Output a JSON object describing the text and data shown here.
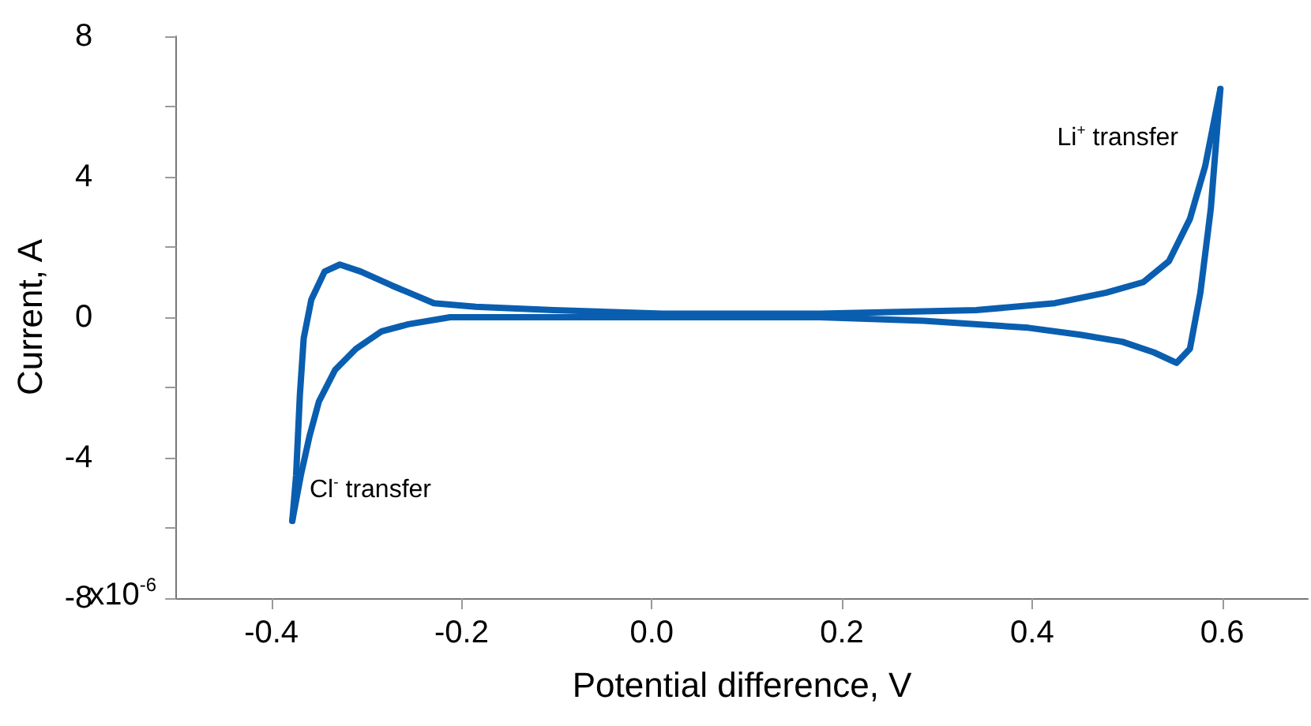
{
  "chart_data": {
    "type": "line",
    "xlabel": "Potential difference, V",
    "ylabel": "Current, A",
    "xlim": [
      -0.5,
      0.69
    ],
    "ylim": [
      -8,
      8
    ],
    "xticks": [
      -0.4,
      -0.2,
      {
        "value": 0,
        "label": "0.0"
      },
      0.2,
      0.4,
      0.6
    ],
    "yticks": [
      -8,
      {
        "value": -6,
        "label": null
      },
      -4,
      {
        "value": -2,
        "label": null
      },
      0,
      {
        "value": 2,
        "label": null
      },
      4,
      {
        "value": 6,
        "label": null
      },
      8
    ],
    "grid": false,
    "marker": "none",
    "line_style": "solid",
    "annotations": [
      "Li$^{+}$ transfer",
      "Cl$^{-}$ transfer",
      "x10$^{-6}$"
    ],
    "series": [
      {
        "color": "#0a5eb0",
        "x": [
          0.598,
          0.588,
          0.577,
          0.566,
          0.552,
          0.528,
          0.495,
          0.451,
          0.396,
          0.286,
          0.177,
          0.012,
          -0.13,
          -0.212,
          -0.256,
          -0.284,
          -0.311,
          -0.333,
          -0.35,
          -0.36,
          -0.369,
          -0.378
        ],
        "values": [
          6.5,
          3.1,
          0.7,
          -0.9,
          -1.3,
          -1.0,
          -0.7,
          -0.5,
          -0.3,
          -0.1,
          0.0,
          0.0,
          0.0,
          0.0,
          -0.2,
          -0.4,
          -0.9,
          -1.5,
          -2.4,
          -3.4,
          -4.5,
          -5.8
        ]
      },
      {
        "color": "#0a5eb0",
        "x": [
          -0.378,
          -0.374,
          -0.37,
          -0.366,
          -0.358,
          -0.344,
          -0.328,
          -0.306,
          -0.273,
          -0.229,
          -0.185,
          -0.103,
          0.012,
          0.177,
          0.341,
          0.424,
          0.478,
          0.517,
          0.544,
          0.566,
          0.582,
          0.598
        ],
        "values": [
          -5.8,
          -4.5,
          -2.2,
          -0.6,
          0.5,
          1.3,
          1.5,
          1.3,
          0.9,
          0.4,
          0.3,
          0.2,
          0.1,
          0.1,
          0.2,
          0.4,
          0.7,
          1.0,
          1.6,
          2.8,
          4.3,
          6.5
        ]
      }
    ]
  }
}
